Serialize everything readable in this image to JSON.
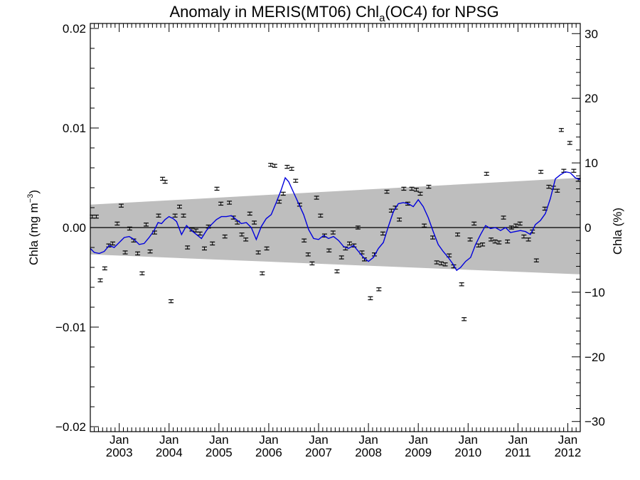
{
  "chart_data": {
    "type": "scatter",
    "title": {
      "prefix": "Anomaly in MERIS(MT06) Chl",
      "subscript": "a",
      "suffix": "(OC4) for NPSG"
    },
    "ylabel_left": {
      "text": "Chla (mg m",
      "superscript": "−3",
      "close": ")"
    },
    "ylabel_right": "Chla (%)",
    "ylim_left": [
      -0.0205,
      0.0205
    ],
    "ylim_right": [
      -31.57,
      31.57
    ],
    "xlim": [
      2002.42,
      2012.25
    ],
    "yticks_left": [
      {
        "value": 0.02,
        "label": "0.02"
      },
      {
        "value": 0.01,
        "label": "0.01"
      },
      {
        "value": 0.0,
        "label": "0.00"
      },
      {
        "value": -0.01,
        "label": "−0.01"
      },
      {
        "value": -0.02,
        "label": "−0.02"
      }
    ],
    "yticks_right": [
      {
        "value": 30,
        "label": "30"
      },
      {
        "value": 20,
        "label": "20"
      },
      {
        "value": 10,
        "label": "10"
      },
      {
        "value": 0,
        "label": "0"
      },
      {
        "value": -10,
        "label": "−10"
      },
      {
        "value": -20,
        "label": "−20"
      },
      {
        "value": -30,
        "label": "−30"
      }
    ],
    "xticks": [
      {
        "value": 2003.0,
        "month": "Jan",
        "year": "2003"
      },
      {
        "value": 2004.0,
        "month": "Jan",
        "year": "2004"
      },
      {
        "value": 2005.0,
        "month": "Jan",
        "year": "2005"
      },
      {
        "value": 2006.0,
        "month": "Jan",
        "year": "2006"
      },
      {
        "value": 2007.0,
        "month": "Jan",
        "year": "2007"
      },
      {
        "value": 2008.0,
        "month": "Jan",
        "year": "2008"
      },
      {
        "value": 2009.0,
        "month": "Jan",
        "year": "2009"
      },
      {
        "value": 2010.0,
        "month": "Jan",
        "year": "2010"
      },
      {
        "value": 2011.0,
        "month": "Jan",
        "year": "2011"
      },
      {
        "value": 2012.0,
        "month": "Jan",
        "year": "2012"
      }
    ],
    "band": {
      "start": {
        "x": 2002.42,
        "upper": 0.0023,
        "lower": -0.0027
      },
      "end": {
        "x": 2012.25,
        "upper": 0.005,
        "lower": -0.0047
      },
      "color": "#bebebe"
    },
    "zero_line": 0.0,
    "error_bar_halfwidth": 0.00015,
    "points": [
      [
        2002.46,
        0.0011
      ],
      [
        2002.54,
        0.0011
      ],
      [
        2002.62,
        -0.0053
      ],
      [
        2002.71,
        -0.0041
      ],
      [
        2002.79,
        -0.0018
      ],
      [
        2002.87,
        -0.0016
      ],
      [
        2002.96,
        0.0004
      ],
      [
        2003.04,
        0.0022
      ],
      [
        2003.12,
        -0.0025
      ],
      [
        2003.21,
        -0.0001
      ],
      [
        2003.29,
        -0.0013
      ],
      [
        2003.37,
        -0.0026
      ],
      [
        2003.46,
        -0.0046
      ],
      [
        2003.54,
        0.0003
      ],
      [
        2003.62,
        -0.0024
      ],
      [
        2003.71,
        -0.0005
      ],
      [
        2003.79,
        0.0012
      ],
      [
        2003.87,
        0.0049
      ],
      [
        2003.92,
        0.0046
      ],
      [
        2004.04,
        -0.0074
      ],
      [
        2004.12,
        0.0012
      ],
      [
        2004.21,
        0.0021
      ],
      [
        2004.29,
        0.0012
      ],
      [
        2004.37,
        -0.002
      ],
      [
        2004.46,
        -0.0002
      ],
      [
        2004.54,
        -0.0003
      ],
      [
        2004.62,
        -0.0006
      ],
      [
        2004.71,
        -0.0021
      ],
      [
        2004.79,
        0.0001
      ],
      [
        2004.87,
        -0.0016
      ],
      [
        2004.96,
        0.0039
      ],
      [
        2005.04,
        0.0024
      ],
      [
        2005.12,
        -0.0009
      ],
      [
        2005.21,
        0.0025
      ],
      [
        2005.29,
        0.001
      ],
      [
        2005.37,
        0.0005
      ],
      [
        2005.46,
        -0.0007
      ],
      [
        2005.54,
        -0.0012
      ],
      [
        2005.62,
        0.0014
      ],
      [
        2005.71,
        0.0005
      ],
      [
        2005.79,
        -0.0025
      ],
      [
        2005.87,
        -0.0046
      ],
      [
        2005.96,
        -0.0021
      ],
      [
        2006.04,
        0.0063
      ],
      [
        2006.12,
        0.0062
      ],
      [
        2006.21,
        0.0026
      ],
      [
        2006.29,
        0.0034
      ],
      [
        2006.37,
        0.0061
      ],
      [
        2006.46,
        0.0059
      ],
      [
        2006.54,
        0.0047
      ],
      [
        2006.62,
        0.0023
      ],
      [
        2006.71,
        -0.0013
      ],
      [
        2006.79,
        -0.0027
      ],
      [
        2006.87,
        -0.0036
      ],
      [
        2006.96,
        0.003
      ],
      [
        2007.04,
        0.0012
      ],
      [
        2007.12,
        -0.0008
      ],
      [
        2007.21,
        -0.0023
      ],
      [
        2007.29,
        -0.0005
      ],
      [
        2007.37,
        -0.0044
      ],
      [
        2007.46,
        -0.003
      ],
      [
        2007.54,
        -0.0021
      ],
      [
        2007.62,
        -0.0016
      ],
      [
        2007.71,
        -0.0018
      ],
      [
        2007.79,
        0.0
      ],
      [
        2007.87,
        -0.0025
      ],
      [
        2007.92,
        -0.0032
      ],
      [
        2008.04,
        -0.0071
      ],
      [
        2008.12,
        -0.0027
      ],
      [
        2008.21,
        -0.0062
      ],
      [
        2008.29,
        -0.0006
      ],
      [
        2008.37,
        0.0036
      ],
      [
        2008.46,
        0.0017
      ],
      [
        2008.54,
        0.002
      ],
      [
        2008.62,
        0.0008
      ],
      [
        2008.71,
        0.0039
      ],
      [
        2008.79,
        0.0024
      ],
      [
        2008.87,
        0.0039
      ],
      [
        2008.96,
        0.0038
      ],
      [
        2009.04,
        0.0034
      ],
      [
        2009.12,
        0.0002
      ],
      [
        2009.21,
        0.0041
      ],
      [
        2009.29,
        -0.001
      ],
      [
        2009.37,
        -0.0035
      ],
      [
        2009.46,
        -0.0036
      ],
      [
        2009.54,
        -0.0037
      ],
      [
        2009.62,
        -0.0028
      ],
      [
        2009.71,
        -0.0039
      ],
      [
        2009.79,
        -0.0007
      ],
      [
        2009.87,
        -0.0057
      ],
      [
        2009.92,
        -0.0092
      ],
      [
        2010.04,
        -0.0012
      ],
      [
        2010.12,
        0.0004
      ],
      [
        2010.21,
        -0.0018
      ],
      [
        2010.29,
        -0.0017
      ],
      [
        2010.37,
        0.0054
      ],
      [
        2010.46,
        -0.0012
      ],
      [
        2010.54,
        -0.0014
      ],
      [
        2010.62,
        -0.0015
      ],
      [
        2010.71,
        0.001
      ],
      [
        2010.79,
        -0.0014
      ],
      [
        2010.87,
        -0.0
      ],
      [
        2010.96,
        0.0002
      ],
      [
        2011.04,
        0.0004
      ],
      [
        2011.12,
        -0.0009
      ],
      [
        2011.21,
        -0.0012
      ],
      [
        2011.29,
        -0.0004
      ],
      [
        2011.37,
        -0.0033
      ],
      [
        2011.46,
        0.0056
      ],
      [
        2011.54,
        0.0019
      ],
      [
        2011.62,
        0.0041
      ],
      [
        2011.71,
        0.004
      ],
      [
        2011.79,
        0.0037
      ],
      [
        2011.87,
        0.0098
      ],
      [
        2011.92,
        0.0057
      ],
      [
        2012.04,
        0.0085
      ],
      [
        2012.12,
        0.0057
      ],
      [
        2012.21,
        0.0048
      ]
    ],
    "smooth_line": {
      "color": "#0000dd",
      "points": [
        [
          2002.42,
          -0.0021
        ],
        [
          2002.5,
          -0.0025
        ],
        [
          2002.6,
          -0.0026
        ],
        [
          2002.7,
          -0.0024
        ],
        [
          2002.8,
          -0.0018
        ],
        [
          2002.9,
          -0.002
        ],
        [
          2003.0,
          -0.0015
        ],
        [
          2003.1,
          -0.001
        ],
        [
          2003.2,
          -0.0009
        ],
        [
          2003.3,
          -0.0012
        ],
        [
          2003.4,
          -0.0017
        ],
        [
          2003.5,
          -0.0016
        ],
        [
          2003.6,
          -0.001
        ],
        [
          2003.7,
          -0.0003
        ],
        [
          2003.78,
          0.0005
        ],
        [
          2003.85,
          0.0004
        ],
        [
          2003.92,
          0.0008
        ],
        [
          2004.0,
          0.0011
        ],
        [
          2004.08,
          0.0009
        ],
        [
          2004.15,
          0.0006
        ],
        [
          2004.25,
          -0.0007
        ],
        [
          2004.35,
          0.0002
        ],
        [
          2004.45,
          -0.0003
        ],
        [
          2004.55,
          -0.0007
        ],
        [
          2004.65,
          -0.0011
        ],
        [
          2004.75,
          -0.0003
        ],
        [
          2004.85,
          0.0003
        ],
        [
          2004.95,
          0.0008
        ],
        [
          2005.05,
          0.0011
        ],
        [
          2005.15,
          0.0011
        ],
        [
          2005.25,
          0.0012
        ],
        [
          2005.35,
          0.0008
        ],
        [
          2005.45,
          0.0004
        ],
        [
          2005.55,
          0.0005
        ],
        [
          2005.65,
          0.0
        ],
        [
          2005.75,
          -0.0012
        ],
        [
          2005.85,
          0.0001
        ],
        [
          2005.95,
          0.0009
        ],
        [
          2006.05,
          0.0013
        ],
        [
          2006.15,
          0.0025
        ],
        [
          2006.25,
          0.0038
        ],
        [
          2006.33,
          0.005
        ],
        [
          2006.4,
          0.0046
        ],
        [
          2006.5,
          0.0035
        ],
        [
          2006.6,
          0.0024
        ],
        [
          2006.7,
          0.0013
        ],
        [
          2006.8,
          -0.0002
        ],
        [
          2006.9,
          -0.0011
        ],
        [
          2007.0,
          -0.0012
        ],
        [
          2007.1,
          -0.0008
        ],
        [
          2007.2,
          -0.0011
        ],
        [
          2007.3,
          -0.0009
        ],
        [
          2007.4,
          -0.0013
        ],
        [
          2007.5,
          -0.0019
        ],
        [
          2007.6,
          -0.0021
        ],
        [
          2007.7,
          -0.0018
        ],
        [
          2007.8,
          -0.0024
        ],
        [
          2007.9,
          -0.003
        ],
        [
          2008.0,
          -0.0034
        ],
        [
          2008.1,
          -0.003
        ],
        [
          2008.2,
          -0.0021
        ],
        [
          2008.3,
          -0.0015
        ],
        [
          2008.4,
          0.0001
        ],
        [
          2008.5,
          0.0016
        ],
        [
          2008.6,
          0.0024
        ],
        [
          2008.7,
          0.0025
        ],
        [
          2008.8,
          0.0024
        ],
        [
          2008.9,
          0.0021
        ],
        [
          2009.0,
          0.0028
        ],
        [
          2009.1,
          0.0021
        ],
        [
          2009.2,
          0.001
        ],
        [
          2009.3,
          -0.0004
        ],
        [
          2009.4,
          -0.0017
        ],
        [
          2009.5,
          -0.0024
        ],
        [
          2009.6,
          -0.003
        ],
        [
          2009.7,
          -0.0037
        ],
        [
          2009.77,
          -0.0043
        ],
        [
          2009.85,
          -0.004
        ],
        [
          2009.95,
          -0.0034
        ],
        [
          2010.05,
          -0.003
        ],
        [
          2010.15,
          -0.0017
        ],
        [
          2010.25,
          -0.0007
        ],
        [
          2010.35,
          0.0002
        ],
        [
          2010.45,
          -0.0001
        ],
        [
          2010.55,
          0.0
        ],
        [
          2010.65,
          -0.0003
        ],
        [
          2010.75,
          0.0
        ],
        [
          2010.85,
          -0.0005
        ],
        [
          2010.95,
          -0.0004
        ],
        [
          2011.05,
          -0.0003
        ],
        [
          2011.15,
          -0.0004
        ],
        [
          2011.25,
          -0.0007
        ],
        [
          2011.35,
          0.0003
        ],
        [
          2011.45,
          0.0007
        ],
        [
          2011.55,
          0.0014
        ],
        [
          2011.65,
          0.0029
        ],
        [
          2011.75,
          0.0049
        ],
        [
          2011.85,
          0.0053
        ],
        [
          2011.95,
          0.0056
        ],
        [
          2012.05,
          0.0055
        ],
        [
          2012.15,
          0.005
        ],
        [
          2012.25,
          0.0048
        ]
      ]
    }
  }
}
